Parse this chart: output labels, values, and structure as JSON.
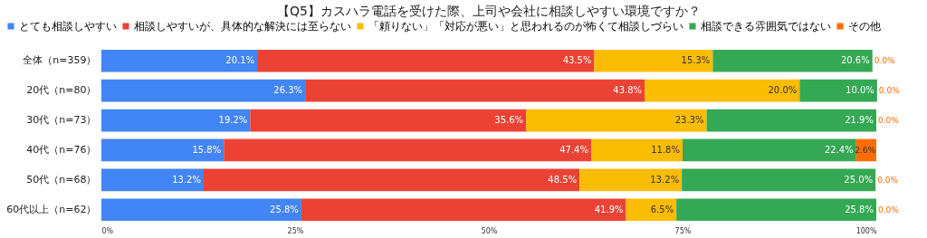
{
  "chart_data": {
    "type": "bar",
    "orientation": "horizontal",
    "stacked": true,
    "title": "【Q5】カスハラ電話を受けた際、上司や会社に相談しやすい環境ですか？",
    "categories": [
      "全体（n=359）",
      "20代（n=80）",
      "30代（n=73）",
      "40代（n=76）",
      "50代（n=68）",
      "60代以上（n=62）"
    ],
    "series": [
      {
        "name": "とても相談しやすい",
        "color": "#4285f4",
        "values": [
          20.1,
          26.3,
          19.2,
          15.8,
          13.2,
          25.8
        ],
        "value_labels": [
          "20.1%",
          "26.3%",
          "19.2%",
          "15.8%",
          "13.2%",
          "25.8%"
        ]
      },
      {
        "name": "相談しやすいが、具体的な解決には至らない",
        "color": "#ea4335",
        "values": [
          43.5,
          43.8,
          35.6,
          47.4,
          48.5,
          41.9
        ],
        "value_labels": [
          "43.5%",
          "43.8%",
          "35.6%",
          "47.4%",
          "48.5%",
          "41.9%"
        ]
      },
      {
        "name": "「頼りない」「対応が悪い」と思われるのが怖くて相談しづらい",
        "color": "#fbbc04",
        "values": [
          15.3,
          20.0,
          23.3,
          11.8,
          13.2,
          6.5
        ],
        "value_labels": [
          "15.3%",
          "20.0%",
          "23.3%",
          "11.8%",
          "13.2%",
          "6.5%"
        ]
      },
      {
        "name": "相談できる雰囲気ではない",
        "color": "#34a853",
        "values": [
          20.6,
          10.0,
          21.9,
          22.4,
          25.0,
          25.8
        ],
        "value_labels": [
          "20.6%",
          "10.0%",
          "21.9%",
          "22.4%",
          "25.0%",
          "25.8%"
        ]
      },
      {
        "name": "その他",
        "color": "#ff6d01",
        "values": [
          0.0,
          0.0,
          0.0,
          2.6,
          0.0,
          0.0
        ],
        "value_labels": [
          "0.0%",
          "0.0%",
          "0.0%",
          "2.6%",
          "0.0%",
          "0.0%"
        ]
      }
    ],
    "xlim": [
      0,
      100
    ],
    "xticks": [
      {
        "value": 0,
        "label": "0%"
      },
      {
        "value": 25,
        "label": "25%"
      },
      {
        "value": 50,
        "label": "50%"
      },
      {
        "value": 75,
        "label": "75%"
      },
      {
        "value": 100,
        "label": "100%"
      }
    ],
    "legend": "top",
    "grid": false
  }
}
